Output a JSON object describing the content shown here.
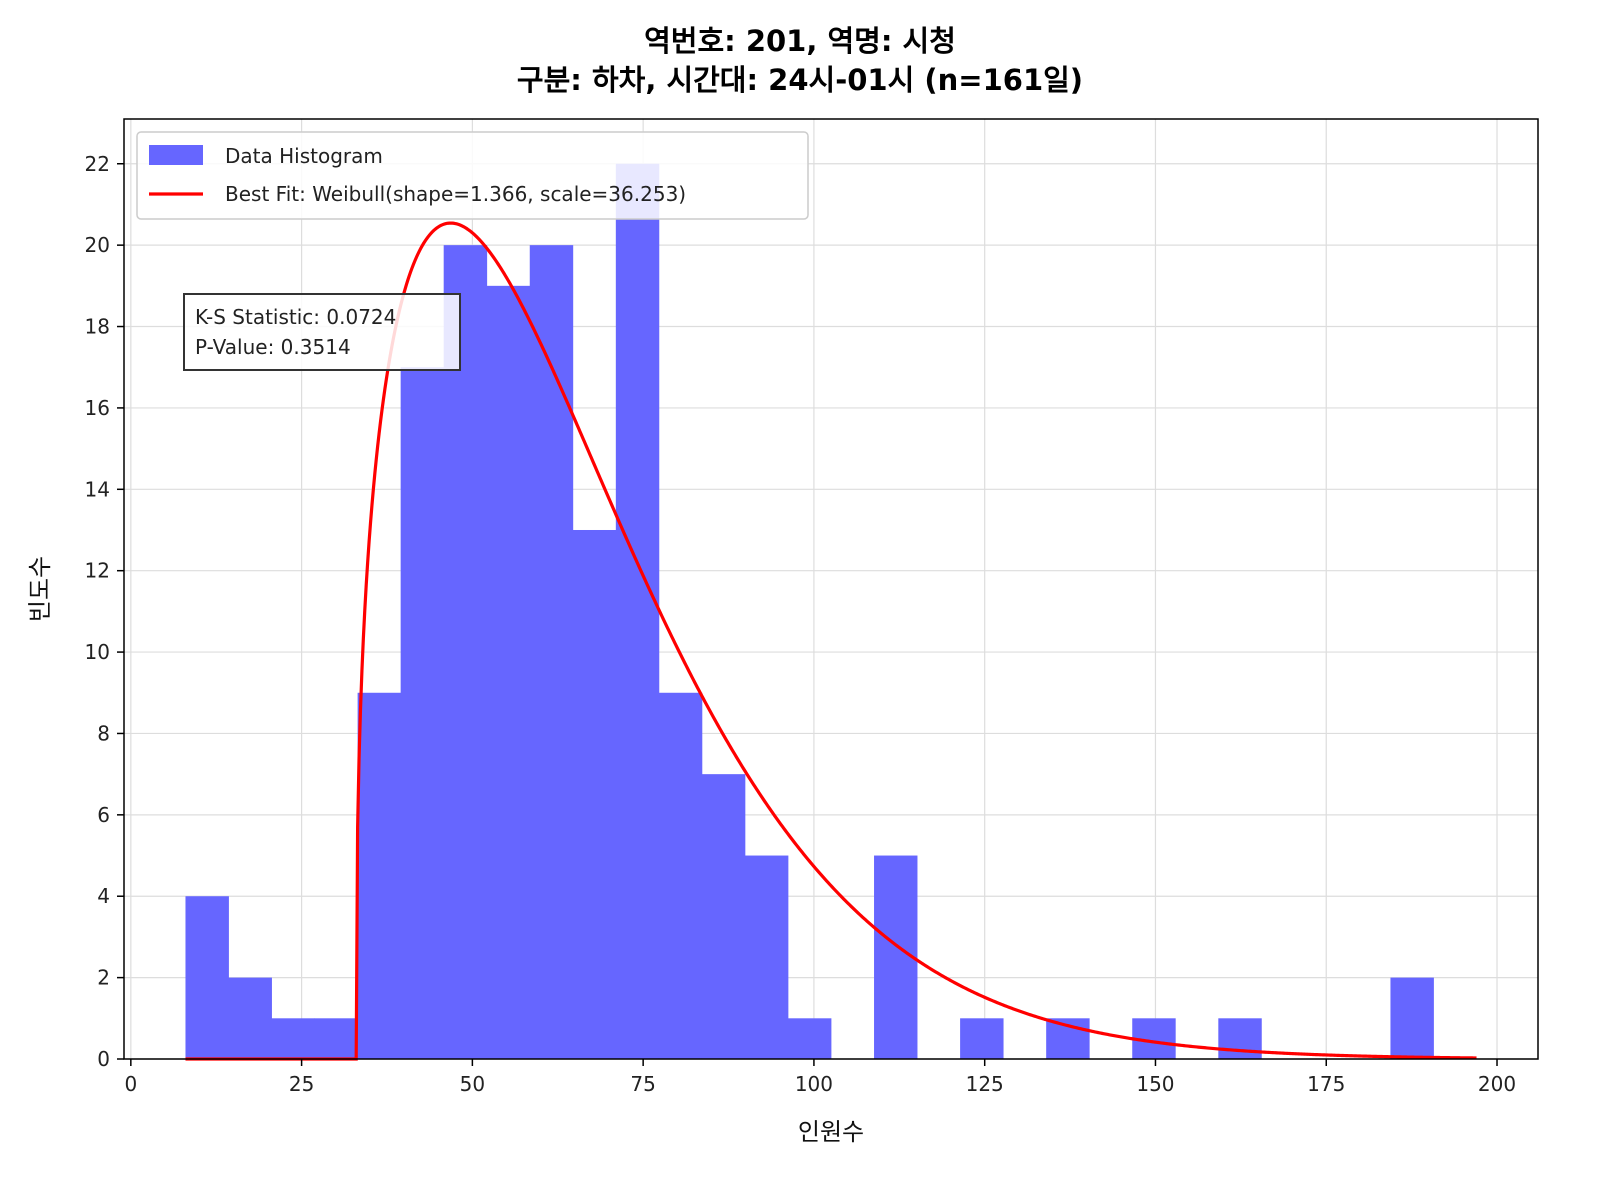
{
  "title": {
    "line1": "역번호: 201, 역명: 시청",
    "line2": "구분: 하차, 시간대: 24시-01시 (n=161일)"
  },
  "stats_box": {
    "line1": "K-S Statistic: 0.0724",
    "line2": "P-Value: 0.3514"
  },
  "colors": {
    "bar": "#6666ff",
    "fit_line": "#ff0000",
    "grid": "#dddddd",
    "axis": "#000000"
  },
  "chart_data": {
    "type": "bar",
    "xlabel": "인원수",
    "ylabel": "빈도수",
    "xlim": [
      -1,
      206
    ],
    "ylim": [
      0,
      23.1
    ],
    "x_ticks": [
      0,
      25,
      50,
      75,
      100,
      125,
      150,
      175,
      200
    ],
    "y_ticks": [
      0,
      2,
      4,
      6,
      8,
      10,
      12,
      14,
      16,
      18,
      20,
      22
    ],
    "grid": true,
    "legend_position": "top-left",
    "histogram": {
      "name": "Data Histogram",
      "bin_start": 8,
      "bin_width": 6.3,
      "counts": [
        4,
        2,
        1,
        1,
        9,
        17,
        20,
        19,
        20,
        13,
        22,
        9,
        7,
        5,
        1,
        0,
        5,
        0,
        1,
        0,
        1,
        0,
        1,
        0,
        1,
        0,
        0,
        0,
        2
      ]
    },
    "fit": {
      "name": "Best Fit: Weibull(shape=1.366, scale=36.253)",
      "distribution": "weibull",
      "shape": 1.366,
      "scale": 36.253,
      "loc": 33,
      "x_range": [
        8,
        197
      ],
      "n": 161
    }
  }
}
